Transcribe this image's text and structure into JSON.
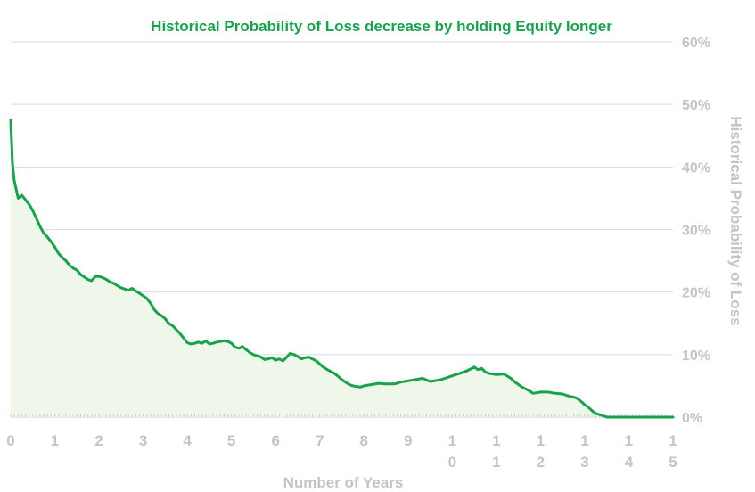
{
  "chart_data": {
    "type": "area",
    "title": "Historical Probability of Loss decrease by holding Equity longer",
    "xlabel": "Number of Years",
    "ylabel": "Historical Probability of Loss",
    "x_ticks": [
      {
        "value": 0,
        "label": "0"
      },
      {
        "value": 1,
        "label": "1"
      },
      {
        "value": 2,
        "label": "2"
      },
      {
        "value": 3,
        "label": "3"
      },
      {
        "value": 4,
        "label": "4"
      },
      {
        "value": 5,
        "label": "5"
      },
      {
        "value": 6,
        "label": "6"
      },
      {
        "value": 7,
        "label": "7"
      },
      {
        "value": 8,
        "label": "8"
      },
      {
        "value": 9,
        "label": "9"
      },
      {
        "value": 10,
        "label": "10"
      },
      {
        "value": 11,
        "label": "11"
      },
      {
        "value": 12,
        "label": "12"
      },
      {
        "value": 13,
        "label": "13"
      },
      {
        "value": 14,
        "label": "14"
      },
      {
        "value": 15,
        "label": "15"
      }
    ],
    "y_ticks": [
      {
        "value": 0,
        "label": "0%"
      },
      {
        "value": 10,
        "label": "10%"
      },
      {
        "value": 20,
        "label": "20%"
      },
      {
        "value": 30,
        "label": "30%"
      },
      {
        "value": 40,
        "label": "40%"
      },
      {
        "value": 50,
        "label": "50%"
      },
      {
        "value": 60,
        "label": "60%"
      }
    ],
    "xlim": [
      0,
      15
    ],
    "ylim": [
      0,
      60
    ],
    "y_axis_side": "right",
    "grid": "horizontal",
    "legend": "none",
    "colors": {
      "line": "#16a34a",
      "fill": "#eef7ea",
      "grid": "#dcdcdc",
      "tick_text": "#c4c4c4",
      "title": "#16a34a"
    },
    "series": [
      {
        "x": [
          0.0,
          0.04,
          0.08,
          0.17,
          0.25,
          0.33,
          0.42,
          0.5,
          0.58,
          0.67,
          0.75,
          0.83,
          0.92,
          1.0,
          1.08,
          1.17,
          1.25,
          1.33,
          1.42,
          1.5,
          1.58,
          1.67,
          1.75,
          1.83,
          1.92,
          2.0,
          2.08,
          2.17,
          2.25,
          2.33,
          2.42,
          2.5,
          2.58,
          2.67,
          2.75,
          2.83,
          2.92,
          3.0,
          3.08,
          3.17,
          3.25,
          3.33,
          3.42,
          3.5,
          3.58,
          3.67,
          3.75,
          3.83,
          3.92,
          4.0,
          4.08,
          4.17,
          4.25,
          4.33,
          4.42,
          4.5,
          4.58,
          4.67,
          4.75,
          4.83,
          4.92,
          5.0,
          5.08,
          5.17,
          5.25,
          5.33,
          5.42,
          5.5,
          5.58,
          5.67,
          5.75,
          5.83,
          5.92,
          6.0,
          6.08,
          6.17,
          6.25,
          6.33,
          6.42,
          6.5,
          6.58,
          6.67,
          6.75,
          6.83,
          6.92,
          7.0,
          7.08,
          7.17,
          7.25,
          7.33,
          7.42,
          7.5,
          7.58,
          7.67,
          7.75,
          7.83,
          7.92,
          8.0,
          8.17,
          8.33,
          8.5,
          8.67,
          8.75,
          8.83,
          9.0,
          9.17,
          9.33,
          9.5,
          9.67,
          9.75,
          9.83,
          10.0,
          10.17,
          10.33,
          10.5,
          10.58,
          10.67,
          10.75,
          10.83,
          11.0,
          11.17,
          11.33,
          11.42,
          11.58,
          11.75,
          11.83,
          12.0,
          12.17,
          12.33,
          12.5,
          12.58,
          12.67,
          12.75,
          12.83,
          12.92,
          13.0,
          13.08,
          13.17,
          13.25,
          13.5,
          14.0,
          14.5,
          15.0
        ],
        "y": [
          47.5,
          40.5,
          37.8,
          35.0,
          35.5,
          34.8,
          34.0,
          33.0,
          31.8,
          30.4,
          29.4,
          28.8,
          28.0,
          27.2,
          26.2,
          25.5,
          25.0,
          24.3,
          23.8,
          23.5,
          22.8,
          22.4,
          22.0,
          21.8,
          22.5,
          22.5,
          22.3,
          22.0,
          21.6,
          21.4,
          21.0,
          20.7,
          20.5,
          20.3,
          20.6,
          20.2,
          19.8,
          19.4,
          19.0,
          18.2,
          17.2,
          16.6,
          16.2,
          15.7,
          15.0,
          14.6,
          14.0,
          13.4,
          12.6,
          11.9,
          11.7,
          11.8,
          12.0,
          11.8,
          12.2,
          11.7,
          11.8,
          12.0,
          12.1,
          12.2,
          12.1,
          11.8,
          11.2,
          11.0,
          11.3,
          10.8,
          10.3,
          10.0,
          9.8,
          9.6,
          9.2,
          9.3,
          9.5,
          9.1,
          9.3,
          9.0,
          9.6,
          10.2,
          10.0,
          9.7,
          9.3,
          9.5,
          9.6,
          9.3,
          9.0,
          8.5,
          8.0,
          7.6,
          7.3,
          7.0,
          6.5,
          6.0,
          5.6,
          5.2,
          5.0,
          4.9,
          4.8,
          5.0,
          5.2,
          5.4,
          5.3,
          5.3,
          5.4,
          5.6,
          5.8,
          6.0,
          6.2,
          5.7,
          5.9,
          6.0,
          6.2,
          6.6,
          7.0,
          7.4,
          8.0,
          7.6,
          7.8,
          7.2,
          7.0,
          6.8,
          6.9,
          6.2,
          5.6,
          4.8,
          4.2,
          3.8,
          4.0,
          4.0,
          3.8,
          3.7,
          3.5,
          3.3,
          3.2,
          3.0,
          2.5,
          2.0,
          1.6,
          1.0,
          0.6,
          0.0,
          0.0,
          0.0,
          0.0
        ]
      }
    ]
  }
}
